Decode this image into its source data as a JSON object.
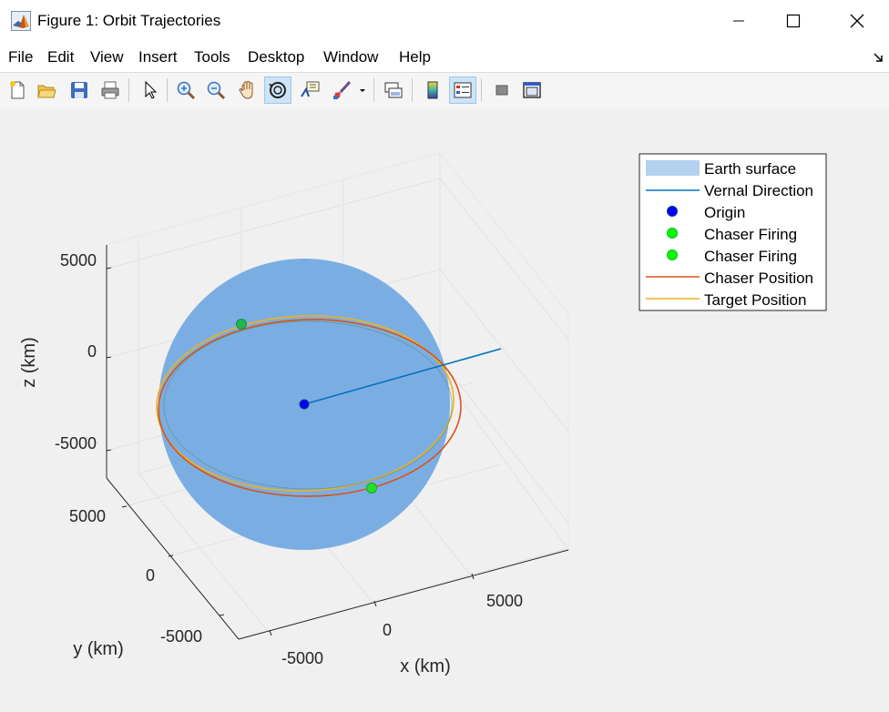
{
  "window": {
    "title": "Figure 1: Orbit Trajectories",
    "app_icon": "matlab-icon"
  },
  "menu": [
    "File",
    "Edit",
    "View",
    "Insert",
    "Tools",
    "Desktop",
    "Window",
    "Help"
  ],
  "toolbar": {
    "buttons": [
      "new-figure",
      "open-file",
      "save",
      "print",
      "edit-plot",
      "zoom-in",
      "zoom-out",
      "pan",
      "rotate-3d",
      "data-cursor",
      "brush",
      "link-plot",
      "insert-colorbar",
      "insert-legend",
      "hide-plot-tools",
      "show-plot-tools"
    ],
    "active": [
      "rotate-3d",
      "insert-legend"
    ]
  },
  "chart_data": {
    "type": "3d-line",
    "xlabel": "x (km)",
    "ylabel": "y (km)",
    "zlabel": "z (km)",
    "xticks": [
      "-5000",
      "0",
      "5000"
    ],
    "yticks": [
      "5000",
      "0",
      "-5000"
    ],
    "zticks": [
      "5000",
      "0",
      "-5000"
    ],
    "xlim": [
      -8000,
      8000
    ],
    "ylim": [
      -8000,
      8000
    ],
    "zlim": [
      -8000,
      8000
    ],
    "grid": true,
    "legend_position": "top-right",
    "earth_radius_km": 6371,
    "series": [
      {
        "name": "Earth surface",
        "kind": "surface",
        "color": "#b3d1ee"
      },
      {
        "name": "Vernal Direction",
        "kind": "line",
        "color": "#0072bd",
        "from": [
          0,
          0,
          0
        ],
        "to": [
          9000,
          0,
          0
        ]
      },
      {
        "name": "Origin",
        "kind": "marker",
        "color": "#0000ff",
        "point": [
          0,
          0,
          0
        ]
      },
      {
        "name": "Chaser Firing",
        "kind": "marker",
        "color": "#00ff00",
        "point": [
          -6800,
          1500,
          1500
        ]
      },
      {
        "name": "Chaser Firing",
        "kind": "marker",
        "color": "#00ff00",
        "point": [
          6800,
          -1500,
          -1500
        ]
      },
      {
        "name": "Chaser Position",
        "kind": "line",
        "color": "#d95319",
        "radius_km": 7000
      },
      {
        "name": "Target Position",
        "kind": "line",
        "color": "#edb120",
        "radius_km": 7000
      }
    ]
  }
}
